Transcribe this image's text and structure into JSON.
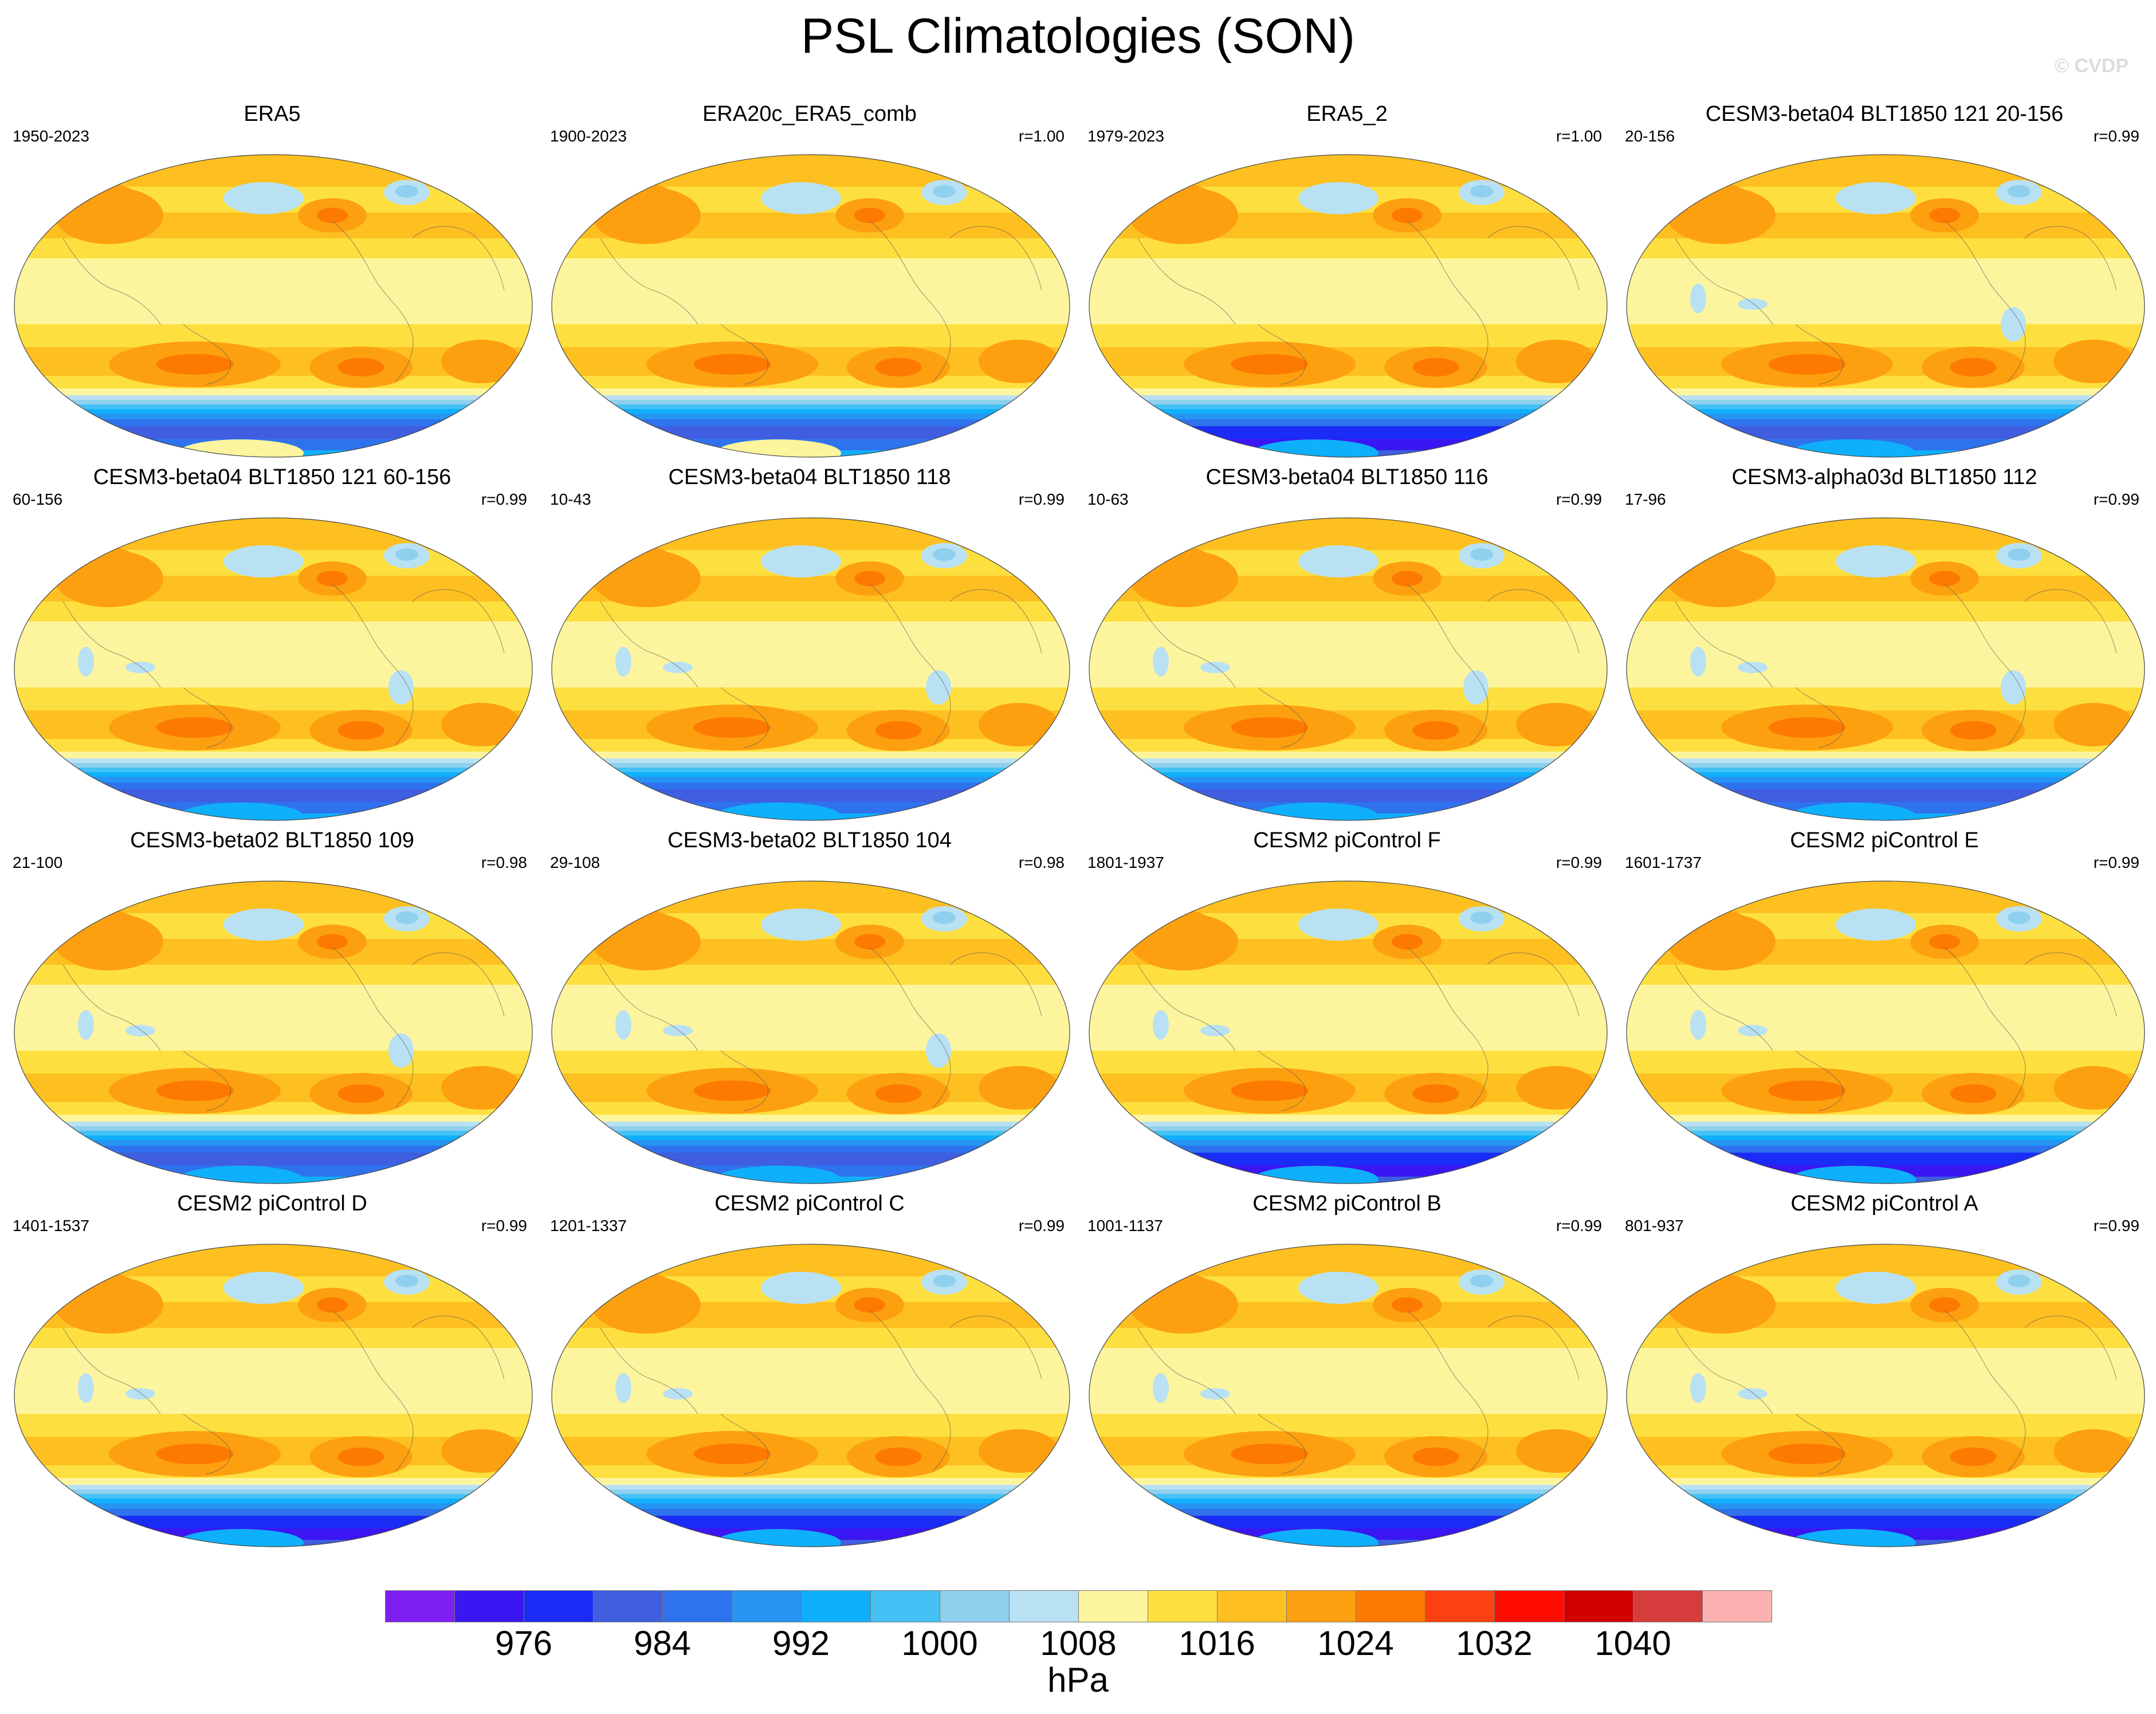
{
  "title": "PSL Climatologies (SON)",
  "watermark": "© CVDP",
  "panels": [
    {
      "name": "ERA5",
      "years": "1950-2023",
      "r": "",
      "variant": "obs1"
    },
    {
      "name": "ERA20c_ERA5_comb",
      "years": "1900-2023",
      "r": "r=1.00",
      "variant": "obs1"
    },
    {
      "name": "ERA5_2",
      "years": "1979-2023",
      "r": "r=1.00",
      "variant": "obs2"
    },
    {
      "name": "CESM3-beta04 BLT1850 121 20-156",
      "years": "20-156",
      "r": "r=0.99",
      "variant": "beta"
    },
    {
      "name": "CESM3-beta04 BLT1850 121 60-156",
      "years": "60-156",
      "r": "r=0.99",
      "variant": "beta"
    },
    {
      "name": "CESM3-beta04 BLT1850 118",
      "years": "10-43",
      "r": "r=0.99",
      "variant": "beta"
    },
    {
      "name": "CESM3-beta04 BLT1850 116",
      "years": "10-63",
      "r": "r=0.99",
      "variant": "beta"
    },
    {
      "name": "CESM3-alpha03d BLT1850 112",
      "years": "17-96",
      "r": "r=0.99",
      "variant": "beta"
    },
    {
      "name": "CESM3-beta02 BLT1850 109",
      "years": "21-100",
      "r": "r=0.98",
      "variant": "beta"
    },
    {
      "name": "CESM3-beta02 BLT1850 104",
      "years": "29-108",
      "r": "r=0.98",
      "variant": "beta"
    },
    {
      "name": "CESM2 piControl F",
      "years": "1801-1937",
      "r": "r=0.99",
      "variant": "cesm2"
    },
    {
      "name": "CESM2 piControl E",
      "years": "1601-1737",
      "r": "r=0.99",
      "variant": "cesm2"
    },
    {
      "name": "CESM2 piControl D",
      "years": "1401-1537",
      "r": "r=0.99",
      "variant": "cesm2"
    },
    {
      "name": "CESM2 piControl C",
      "years": "1201-1337",
      "r": "r=0.99",
      "variant": "cesm2"
    },
    {
      "name": "CESM2 piControl B",
      "years": "1001-1137",
      "r": "r=0.99",
      "variant": "cesm2"
    },
    {
      "name": "CESM2 piControl A",
      "years": "801-937",
      "r": "r=0.99",
      "variant": "cesm2"
    }
  ],
  "colorbar": {
    "unit": "hPa",
    "colors": [
      "#7d1ff0",
      "#3a17f2",
      "#1a2cf6",
      "#3f5ee0",
      "#2f72ee",
      "#2694f2",
      "#0fb0fb",
      "#44c2f5",
      "#8fd0ee",
      "#b9e1f4",
      "#fdf59e",
      "#fde040",
      "#fdc020",
      "#fda010",
      "#fd7a00",
      "#fd4010",
      "#ff0d00",
      "#d00000",
      "#d63c3c",
      "#fcb2b2"
    ],
    "ticks": [
      "976",
      "984",
      "992",
      "1000",
      "1008",
      "1016",
      "1024",
      "1032",
      "1040"
    ]
  }
}
